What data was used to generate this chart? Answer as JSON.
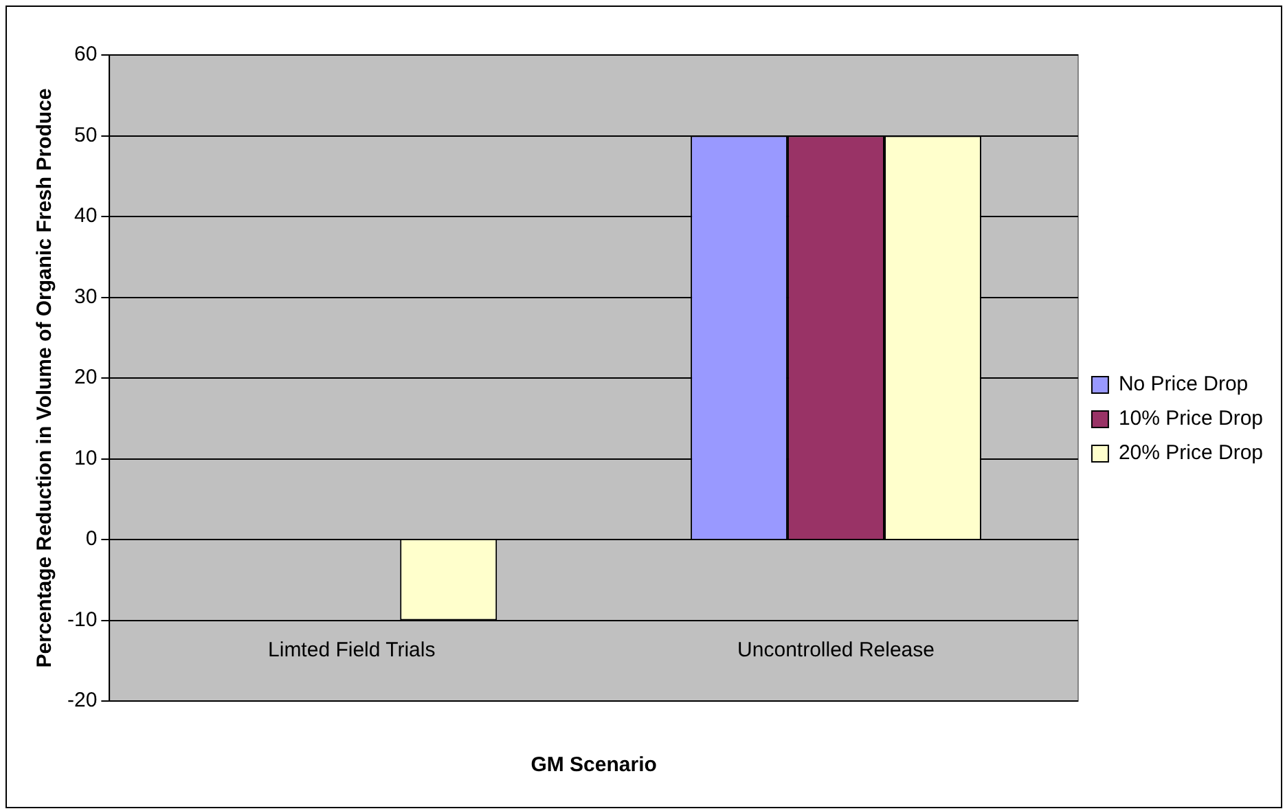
{
  "chart_data": {
    "type": "bar",
    "xlabel": "GM Scenario",
    "ylabel": "Percentage Reduction in Volume of Organic Fresh Produce",
    "categories": [
      "Limted Field Trials",
      "Uncontrolled Release"
    ],
    "series": [
      {
        "name": "No Price Drop",
        "color": "#9999ff",
        "values": [
          0,
          50
        ]
      },
      {
        "name": "10% Price Drop",
        "color": "#993366",
        "values": [
          0,
          50
        ]
      },
      {
        "name": "20% Price Drop",
        "color": "#ffffcc",
        "values": [
          -10,
          50
        ]
      }
    ],
    "ylim": [
      -20,
      60
    ],
    "yticks": [
      -20,
      -10,
      0,
      10,
      20,
      30,
      40,
      50,
      60
    ],
    "grid": "y",
    "legend": "right"
  }
}
